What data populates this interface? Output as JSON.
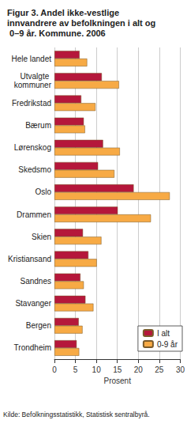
{
  "chart_data": {
    "type": "bar",
    "orientation": "horizontal",
    "title": "Figur 3. Andel ikke-vestlige innvandrere av befolkningen i alt og 0–9 år. Kommune. 2006",
    "categories": [
      "Hele landet",
      "Utvalgte kommuner",
      "Fredrikstad",
      "Bærum",
      "Lørenskog",
      "Skedsmo",
      "Oslo",
      "Drammen",
      "Skien",
      "Kristiansand",
      "Sandnes",
      "Stavanger",
      "Bergen",
      "Trondheim"
    ],
    "series": [
      {
        "name": "I alt",
        "color": "#b5173b",
        "values": [
          6.0,
          11.3,
          6.4,
          7.0,
          11.6,
          10.4,
          18.9,
          15.1,
          6.8,
          8.1,
          6.2,
          7.4,
          5.8,
          5.3
        ]
      },
      {
        "name": "0-9 år",
        "color": "#f7aa45",
        "values": [
          7.8,
          15.4,
          9.8,
          7.3,
          15.6,
          14.3,
          27.5,
          23.0,
          11.2,
          10.1,
          7.0,
          9.3,
          6.7,
          5.9
        ]
      }
    ],
    "xlabel": "Prosent",
    "xlim": [
      0,
      30
    ],
    "xticks": [
      0,
      5,
      10,
      15,
      20,
      25,
      30
    ],
    "grid": true,
    "legend": "lower right",
    "annotations": [
      "Kilde: Befolkningsstatistikk, Statistisk sentralbyrå."
    ]
  }
}
